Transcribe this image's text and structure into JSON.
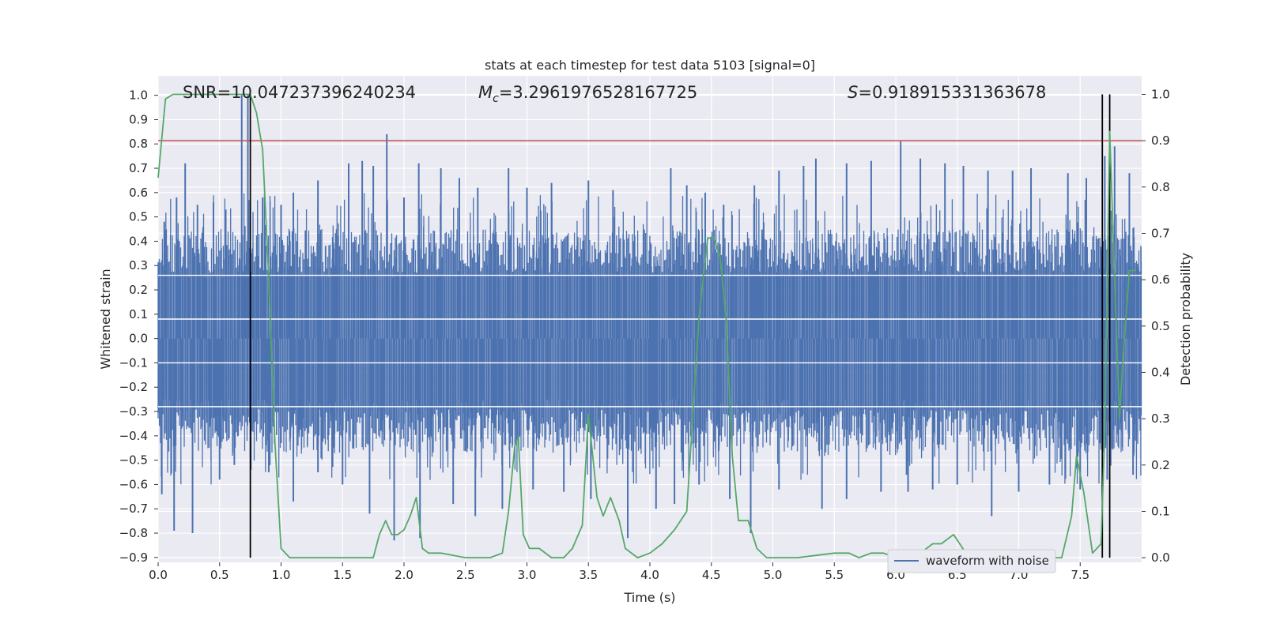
{
  "chart_data": {
    "type": "line",
    "title": "stats at each timestep for test data 5103 [signal=0]",
    "xlabel": "Time (s)",
    "ylabel_left": "Whitened strain",
    "ylabel_right": "Detection probability",
    "xlim": [
      0.0,
      8.0
    ],
    "ylim_left": [
      -0.92,
      1.08
    ],
    "ylim_right": [
      -0.01,
      1.04
    ],
    "grid": true,
    "x_ticks": [
      "0.0",
      "0.5",
      "1.0",
      "1.5",
      "2.0",
      "2.5",
      "3.0",
      "3.5",
      "4.0",
      "4.5",
      "5.0",
      "5.5",
      "6.0",
      "6.5",
      "7.0",
      "7.5"
    ],
    "y_ticks_left": [
      "1.0",
      "0.9",
      "0.8",
      "0.7",
      "0.6",
      "0.5",
      "0.4",
      "0.3",
      "0.2",
      "0.1",
      "0.0",
      "−0.1",
      "−0.2",
      "−0.3",
      "−0.4",
      "−0.5",
      "−0.6",
      "−0.7",
      "−0.8",
      "−0.9"
    ],
    "y_ticks_right": [
      "1.0",
      "0.9",
      "0.8",
      "0.7",
      "0.6",
      "0.5",
      "0.4",
      "0.3",
      "0.2",
      "0.1",
      "0.0"
    ],
    "annotations": {
      "snr": "SNR=10.047237396240234",
      "mc_symbol": "M",
      "mc_sub": "c",
      "mc_value": "=3.2961976528167725",
      "s_symbol": "S",
      "s_value": "=0.918915331363678"
    },
    "legend": {
      "placement": "lower-right",
      "entries": [
        "waveform with noise"
      ]
    },
    "colors": {
      "background": "#eaeaf2",
      "grid": "#ffffff",
      "waveform": "#4c72b0",
      "probability": "#55a868",
      "threshold": "#c44e52",
      "markers": "#000000"
    },
    "threshold_right": 0.9,
    "vertical_markers_x": [
      0.75,
      7.68,
      7.74
    ],
    "waveform": {
      "name": "waveform with noise",
      "band_left": [
        -0.29,
        0.27
      ],
      "spikes": [
        {
          "x": 0.05,
          "y": 0.48
        },
        {
          "x": 0.15,
          "y": 0.58
        },
        {
          "x": 0.22,
          "y": 0.72
        },
        {
          "x": 0.32,
          "y": 0.55
        },
        {
          "x": 0.45,
          "y": 0.56
        },
        {
          "x": 0.55,
          "y": 0.53
        },
        {
          "x": 0.68,
          "y": 1.0
        },
        {
          "x": 0.73,
          "y": 1.0
        },
        {
          "x": 0.85,
          "y": 0.58
        },
        {
          "x": 1.0,
          "y": 0.55
        },
        {
          "x": 1.1,
          "y": 0.6
        },
        {
          "x": 1.3,
          "y": 0.65
        },
        {
          "x": 1.55,
          "y": 0.72
        },
        {
          "x": 1.66,
          "y": 0.73
        },
        {
          "x": 1.75,
          "y": 0.71
        },
        {
          "x": 1.86,
          "y": 0.84
        },
        {
          "x": 2.0,
          "y": 0.58
        },
        {
          "x": 2.12,
          "y": 0.72
        },
        {
          "x": 2.3,
          "y": 0.7
        },
        {
          "x": 2.45,
          "y": 0.66
        },
        {
          "x": 2.6,
          "y": 0.62
        },
        {
          "x": 2.85,
          "y": 0.7
        },
        {
          "x": 3.0,
          "y": 0.62
        },
        {
          "x": 3.2,
          "y": 0.64
        },
        {
          "x": 3.5,
          "y": 0.65
        },
        {
          "x": 3.7,
          "y": 0.61
        },
        {
          "x": 4.17,
          "y": 0.7
        },
        {
          "x": 4.3,
          "y": 0.63
        },
        {
          "x": 4.45,
          "y": 0.6
        },
        {
          "x": 4.6,
          "y": 0.55
        },
        {
          "x": 4.85,
          "y": 0.63
        },
        {
          "x": 5.05,
          "y": 0.69
        },
        {
          "x": 5.25,
          "y": 0.71
        },
        {
          "x": 5.35,
          "y": 0.74
        },
        {
          "x": 5.6,
          "y": 0.72
        },
        {
          "x": 5.8,
          "y": 0.73
        },
        {
          "x": 6.04,
          "y": 0.81
        },
        {
          "x": 6.2,
          "y": 0.74
        },
        {
          "x": 6.4,
          "y": 0.72
        },
        {
          "x": 6.55,
          "y": 0.71
        },
        {
          "x": 6.75,
          "y": 0.69
        },
        {
          "x": 6.95,
          "y": 0.69
        },
        {
          "x": 7.1,
          "y": 0.7
        },
        {
          "x": 7.4,
          "y": 0.68
        },
        {
          "x": 7.55,
          "y": 0.66
        },
        {
          "x": 7.7,
          "y": 0.75
        },
        {
          "x": 7.78,
          "y": 0.79
        },
        {
          "x": 7.9,
          "y": 0.68
        },
        {
          "x": 0.03,
          "y": -0.64
        },
        {
          "x": 0.13,
          "y": -0.79
        },
        {
          "x": 0.28,
          "y": -0.8
        },
        {
          "x": 0.5,
          "y": -0.58
        },
        {
          "x": 0.62,
          "y": -0.52
        },
        {
          "x": 0.9,
          "y": -0.55
        },
        {
          "x": 1.1,
          "y": -0.67
        },
        {
          "x": 1.3,
          "y": -0.55
        },
        {
          "x": 1.5,
          "y": -0.6
        },
        {
          "x": 1.72,
          "y": -0.72
        },
        {
          "x": 1.92,
          "y": -0.83
        },
        {
          "x": 2.13,
          "y": -0.82
        },
        {
          "x": 2.4,
          "y": -0.68
        },
        {
          "x": 2.58,
          "y": -0.73
        },
        {
          "x": 2.8,
          "y": -0.7
        },
        {
          "x": 3.05,
          "y": -0.62
        },
        {
          "x": 3.3,
          "y": -0.63
        },
        {
          "x": 3.52,
          "y": -0.66
        },
        {
          "x": 3.82,
          "y": -0.82
        },
        {
          "x": 4.05,
          "y": -0.7
        },
        {
          "x": 4.2,
          "y": -0.68
        },
        {
          "x": 4.4,
          "y": -0.6
        },
        {
          "x": 4.65,
          "y": -0.66
        },
        {
          "x": 4.82,
          "y": -0.8
        },
        {
          "x": 5.05,
          "y": -0.62
        },
        {
          "x": 5.4,
          "y": -0.7
        },
        {
          "x": 5.6,
          "y": -0.66
        },
        {
          "x": 5.88,
          "y": -0.63
        },
        {
          "x": 6.1,
          "y": -0.63
        },
        {
          "x": 6.3,
          "y": -0.62
        },
        {
          "x": 6.5,
          "y": -0.6
        },
        {
          "x": 6.78,
          "y": -0.73
        },
        {
          "x": 7.0,
          "y": -0.63
        },
        {
          "x": 7.25,
          "y": -0.6
        },
        {
          "x": 7.5,
          "y": -0.62
        },
        {
          "x": 7.72,
          "y": -0.58
        },
        {
          "x": 7.93,
          "y": -0.56
        }
      ]
    },
    "probability_curve": {
      "x": [
        0.0,
        0.06,
        0.12,
        0.2,
        0.3,
        0.4,
        0.5,
        0.6,
        0.7,
        0.75,
        0.8,
        0.85,
        0.9,
        0.95,
        1.0,
        1.07,
        1.2,
        1.4,
        1.6,
        1.7,
        1.75,
        1.8,
        1.85,
        1.9,
        1.95,
        2.0,
        2.05,
        2.1,
        2.15,
        2.2,
        2.3,
        2.5,
        2.7,
        2.8,
        2.85,
        2.9,
        2.93,
        2.97,
        3.02,
        3.1,
        3.2,
        3.3,
        3.37,
        3.45,
        3.5,
        3.57,
        3.62,
        3.68,
        3.75,
        3.8,
        3.9,
        4.0,
        4.1,
        4.2,
        4.3,
        4.4,
        4.47,
        4.52,
        4.57,
        4.62,
        4.67,
        4.72,
        4.8,
        4.87,
        4.95,
        5.05,
        5.2,
        5.5,
        5.62,
        5.7,
        5.8,
        5.9,
        6.0,
        6.1,
        6.2,
        6.3,
        6.37,
        6.47,
        6.57,
        6.7,
        6.8,
        6.9,
        7.0,
        7.12,
        7.2,
        7.3,
        7.35,
        7.43,
        7.47,
        7.53,
        7.6,
        7.67,
        7.7,
        7.74,
        7.78,
        7.82,
        7.85,
        7.9,
        7.95
      ],
      "y": [
        0.82,
        0.99,
        1.0,
        1.0,
        1.0,
        1.0,
        1.0,
        1.0,
        1.0,
        1.0,
        0.96,
        0.88,
        0.6,
        0.25,
        0.02,
        0.0,
        0.0,
        0.0,
        0.0,
        0.0,
        0.0,
        0.05,
        0.08,
        0.05,
        0.05,
        0.06,
        0.09,
        0.13,
        0.02,
        0.01,
        0.01,
        0.0,
        0.0,
        0.01,
        0.1,
        0.24,
        0.26,
        0.05,
        0.02,
        0.02,
        0.0,
        0.0,
        0.02,
        0.07,
        0.31,
        0.13,
        0.09,
        0.13,
        0.08,
        0.02,
        0.0,
        0.01,
        0.03,
        0.06,
        0.1,
        0.52,
        0.69,
        0.69,
        0.65,
        0.52,
        0.22,
        0.08,
        0.08,
        0.02,
        0.0,
        0.0,
        0.0,
        0.01,
        0.01,
        0.0,
        0.01,
        0.01,
        0.0,
        0.01,
        0.01,
        0.03,
        0.03,
        0.05,
        0.01,
        0.01,
        0.0,
        0.0,
        0.0,
        0.01,
        0.0,
        0.0,
        0.0,
        0.09,
        0.22,
        0.14,
        0.01,
        0.03,
        0.28,
        0.92,
        0.6,
        0.3,
        0.44,
        0.62,
        0.62
      ]
    }
  }
}
